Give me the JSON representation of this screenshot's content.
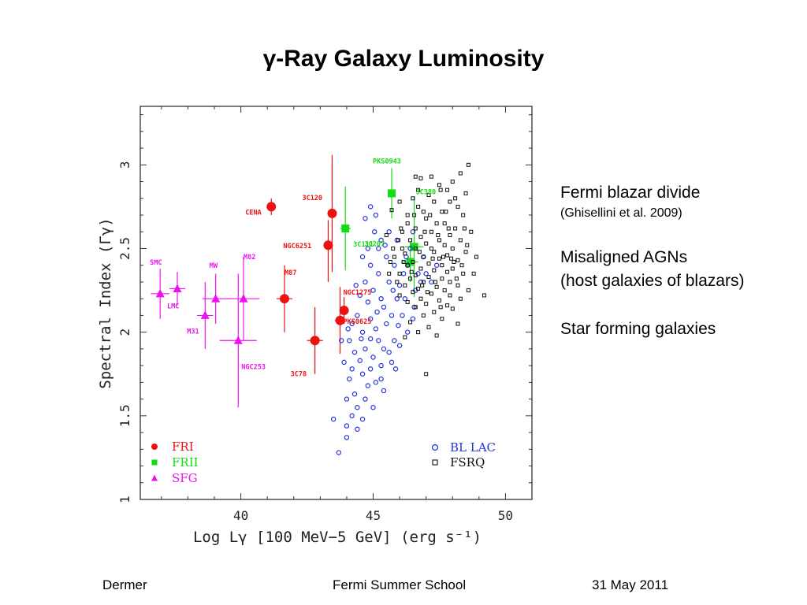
{
  "slide": {
    "title": "γ-Ray Galaxy Luminosity",
    "notes": [
      {
        "text": "Fermi blazar divide",
        "size": "big"
      },
      {
        "text": "(Ghisellini et al. 2009)",
        "size": "small"
      },
      {
        "text": "Misaligned AGNs",
        "size": "big"
      },
      {
        "text": "(host galaxies of blazars)",
        "size": "big"
      },
      {
        "text": "Star forming galaxies",
        "size": "big"
      }
    ],
    "footer": {
      "left": "Dermer",
      "center": "Fermi Summer School",
      "right": "31  May 2011"
    }
  },
  "colors": {
    "fri": "#ee1111",
    "frii": "#11dd11",
    "sfg": "#ee11ee",
    "bllac": "#2233dd",
    "fsrq": "#111111"
  },
  "chart_data": {
    "type": "scatter",
    "xlabel": "Log Lγ [100 MeV−5 GeV] (erg s⁻¹)",
    "ylabel": "Spectral Index (Γγ)",
    "xlim": [
      36.2,
      51.0
    ],
    "ylim": [
      1.0,
      3.35
    ],
    "xticks": [
      "40",
      "45",
      "50"
    ],
    "yticks": [
      "1",
      "1.5",
      "2",
      "2.5",
      "3"
    ],
    "legend_left": [
      {
        "label": "FRI",
        "series": "fri",
        "marker": "circle"
      },
      {
        "label": "FRII",
        "series": "frii",
        "marker": "square"
      },
      {
        "label": "SFG",
        "series": "sfg",
        "marker": "triangle"
      }
    ],
    "legend_right": [
      {
        "label": "BL LAC",
        "series": "bllac",
        "marker": "open-circle"
      },
      {
        "label": "FSRQ",
        "series": "fsrq",
        "marker": "open-square"
      }
    ],
    "series": [
      {
        "name": "FRI",
        "key": "fri",
        "marker": "circle",
        "points": [
          {
            "label": "CENA",
            "x": 41.15,
            "y": 2.75,
            "xerr": 0.0,
            "yerr": [
              0.05,
              0.05
            ]
          },
          {
            "label": "3C120",
            "x": 43.45,
            "y": 2.71,
            "xerr": 0.12,
            "yerr": [
              0.35,
              0.35
            ]
          },
          {
            "label": "NGC6251",
            "x": 43.3,
            "y": 2.52,
            "xerr": 0.15,
            "yerr": [
              0.22,
              0.15
            ]
          },
          {
            "label": "M87",
            "x": 41.65,
            "y": 2.2,
            "xerr": 0.3,
            "yerr": [
              0.2,
              0.2
            ]
          },
          {
            "label": "NGC1275",
            "x": 43.9,
            "y": 2.13,
            "xerr": 0.1,
            "yerr": [
              0.08,
              0.08
            ]
          },
          {
            "label": "PKS0625",
            "x": 43.75,
            "y": 2.07,
            "xerr": 0.2,
            "yerr": [
              0.2,
              0.2
            ]
          },
          {
            "label": "3C78",
            "x": 42.8,
            "y": 1.95,
            "xerr": 0.3,
            "yerr": [
              0.2,
              0.2
            ]
          }
        ]
      },
      {
        "name": "FRII",
        "key": "frii",
        "marker": "square",
        "points": [
          {
            "label": "PKS0943",
            "x": 45.7,
            "y": 2.83,
            "xerr": 0.12,
            "yerr": [
              0.15,
              0.15
            ]
          },
          {
            "label": "3C380",
            "x": 46.55,
            "y": 2.51,
            "xerr": 0.35,
            "yerr": [
              0.3,
              0.3
            ]
          },
          {
            "label": "3C111",
            "x": 43.95,
            "y": 2.62,
            "xerr": 0.2,
            "yerr": [
              0.25,
              0.25
            ]
          },
          {
            "label": "3C207",
            "x": 46.4,
            "y": 2.42,
            "xerr": 0.3,
            "yerr": [
              0.12,
              0.12
            ]
          }
        ]
      },
      {
        "name": "SFG",
        "key": "sfg",
        "marker": "triangle",
        "points": [
          {
            "label": "SMC",
            "x": 36.95,
            "y": 2.23,
            "xerr": 0.35,
            "yerr": [
              0.15,
              0.15
            ]
          },
          {
            "label": "LMC",
            "x": 37.6,
            "y": 2.26,
            "xerr": 0.3,
            "yerr": [
              0.1,
              0.1
            ]
          },
          {
            "label": "M31",
            "x": 38.65,
            "y": 2.1,
            "xerr": 0.3,
            "yerr": [
              0.2,
              0.2
            ]
          },
          {
            "label": "MW",
            "x": 39.05,
            "y": 2.2,
            "xerr": 0.5,
            "yerr": [
              0.15,
              0.15
            ]
          },
          {
            "label": "M82",
            "x": 40.1,
            "y": 2.2,
            "xerr": 0.6,
            "yerr": [
              0.25,
              0.25
            ]
          },
          {
            "label": "NGC253",
            "x": 39.9,
            "y": 1.95,
            "xerr": 0.7,
            "yerr": [
              0.4,
              0.4
            ]
          }
        ]
      },
      {
        "name": "BL LAC",
        "key": "bllac",
        "marker": "open-circle",
        "points": [
          [
            45.05,
            2.6
          ],
          [
            45.3,
            2.55
          ],
          [
            44.8,
            2.5
          ],
          [
            44.6,
            2.45
          ],
          [
            44.9,
            2.4
          ],
          [
            45.5,
            2.45
          ],
          [
            45.8,
            2.4
          ],
          [
            45.2,
            2.35
          ],
          [
            44.7,
            2.3
          ],
          [
            45.0,
            2.25
          ],
          [
            44.5,
            2.22
          ],
          [
            44.8,
            2.18
          ],
          [
            45.3,
            2.2
          ],
          [
            45.6,
            2.3
          ],
          [
            46.0,
            2.28
          ],
          [
            45.9,
            2.2
          ],
          [
            45.4,
            2.15
          ],
          [
            44.4,
            2.1
          ],
          [
            44.9,
            2.08
          ],
          [
            45.1,
            2.02
          ],
          [
            44.6,
            2.0
          ],
          [
            45.5,
            2.05
          ],
          [
            46.1,
            2.1
          ],
          [
            46.3,
            2.0
          ],
          [
            45.8,
            1.95
          ],
          [
            45.2,
            1.95
          ],
          [
            44.7,
            1.9
          ],
          [
            44.3,
            1.88
          ],
          [
            45.0,
            1.85
          ],
          [
            45.6,
            1.88
          ],
          [
            46.0,
            1.92
          ],
          [
            44.5,
            1.83
          ],
          [
            44.9,
            1.78
          ],
          [
            45.3,
            1.8
          ],
          [
            45.7,
            1.82
          ],
          [
            44.2,
            1.78
          ],
          [
            43.9,
            1.82
          ],
          [
            44.1,
            1.72
          ],
          [
            44.6,
            1.75
          ],
          [
            45.1,
            1.7
          ],
          [
            45.4,
            1.65
          ],
          [
            44.8,
            1.68
          ],
          [
            44.3,
            1.63
          ],
          [
            44.0,
            1.6
          ],
          [
            44.7,
            1.6
          ],
          [
            45.0,
            1.55
          ],
          [
            44.4,
            1.55
          ],
          [
            44.2,
            1.5
          ],
          [
            44.6,
            1.48
          ],
          [
            43.5,
            1.48
          ],
          [
            44.0,
            1.44
          ],
          [
            44.4,
            1.42
          ],
          [
            44.0,
            1.37
          ],
          [
            43.7,
            1.28
          ],
          [
            45.2,
            2.5
          ],
          [
            45.9,
            2.55
          ],
          [
            46.3,
            2.4
          ],
          [
            46.6,
            2.25
          ],
          [
            46.8,
            2.3
          ],
          [
            47.0,
            2.35
          ],
          [
            46.2,
            2.2
          ],
          [
            45.7,
            2.1
          ],
          [
            44.2,
            2.05
          ],
          [
            43.8,
            1.95
          ],
          [
            44.1,
            1.95
          ],
          [
            45.4,
            1.9
          ],
          [
            46.5,
            2.08
          ],
          [
            46.7,
            2.35
          ],
          [
            47.2,
            2.3
          ],
          [
            47.4,
            2.4
          ],
          [
            46.4,
            2.5
          ],
          [
            46.9,
            2.45
          ],
          [
            45.6,
            2.6
          ],
          [
            45.1,
            2.7
          ],
          [
            44.9,
            2.75
          ],
          [
            44.7,
            2.68
          ],
          [
            46.5,
            2.6
          ],
          [
            45.3,
            1.72
          ],
          [
            44.9,
            1.96
          ],
          [
            45.15,
            2.12
          ],
          [
            45.75,
            2.25
          ],
          [
            46.15,
            2.35
          ],
          [
            46.55,
            2.15
          ],
          [
            44.35,
            2.28
          ],
          [
            44.55,
            1.96
          ],
          [
            45.95,
            2.04
          ],
          [
            45.45,
            2.52
          ],
          [
            44.05,
            2.02
          ],
          [
            46.25,
            2.45
          ],
          [
            45.85,
            1.78
          ]
        ]
      },
      {
        "name": "FSRQ",
        "key": "fsrq",
        "marker": "open-square",
        "points": [
          [
            48.6,
            3.0
          ],
          [
            48.3,
            2.95
          ],
          [
            47.2,
            2.93
          ],
          [
            46.6,
            2.93
          ],
          [
            46.8,
            2.92
          ],
          [
            48.0,
            2.9
          ],
          [
            47.5,
            2.88
          ],
          [
            47.8,
            2.85
          ],
          [
            46.7,
            2.85
          ],
          [
            47.1,
            2.82
          ],
          [
            48.5,
            2.83
          ],
          [
            46.5,
            2.8
          ],
          [
            47.3,
            2.78
          ],
          [
            47.9,
            2.78
          ],
          [
            48.2,
            2.75
          ],
          [
            46.9,
            2.72
          ],
          [
            47.6,
            2.72
          ],
          [
            46.3,
            2.7
          ],
          [
            48.4,
            2.7
          ],
          [
            47.0,
            2.68
          ],
          [
            47.4,
            2.65
          ],
          [
            47.7,
            2.65
          ],
          [
            48.1,
            2.62
          ],
          [
            46.6,
            2.62
          ],
          [
            46.1,
            2.6
          ],
          [
            47.2,
            2.6
          ],
          [
            48.7,
            2.6
          ],
          [
            47.9,
            2.58
          ],
          [
            46.8,
            2.57
          ],
          [
            47.5,
            2.55
          ],
          [
            48.3,
            2.55
          ],
          [
            46.4,
            2.55
          ],
          [
            47.0,
            2.53
          ],
          [
            47.7,
            2.52
          ],
          [
            48.0,
            2.5
          ],
          [
            46.6,
            2.5
          ],
          [
            47.3,
            2.48
          ],
          [
            48.5,
            2.48
          ],
          [
            46.2,
            2.47
          ],
          [
            47.8,
            2.46
          ],
          [
            46.9,
            2.45
          ],
          [
            47.5,
            2.44
          ],
          [
            48.2,
            2.43
          ],
          [
            46.5,
            2.42
          ],
          [
            47.1,
            2.41
          ],
          [
            47.6,
            2.4
          ],
          [
            46.3,
            2.4
          ],
          [
            48.0,
            2.38
          ],
          [
            46.8,
            2.38
          ],
          [
            47.3,
            2.37
          ],
          [
            47.8,
            2.36
          ],
          [
            46.0,
            2.35
          ],
          [
            48.4,
            2.35
          ],
          [
            46.6,
            2.34
          ],
          [
            47.1,
            2.33
          ],
          [
            47.6,
            2.32
          ],
          [
            46.4,
            2.32
          ],
          [
            47.9,
            2.3
          ],
          [
            46.9,
            2.3
          ],
          [
            48.2,
            2.28
          ],
          [
            46.2,
            2.28
          ],
          [
            47.4,
            2.27
          ],
          [
            46.7,
            2.26
          ],
          [
            47.7,
            2.25
          ],
          [
            48.6,
            2.25
          ],
          [
            46.5,
            2.24
          ],
          [
            47.2,
            2.23
          ],
          [
            47.9,
            2.22
          ],
          [
            46.0,
            2.22
          ],
          [
            46.8,
            2.2
          ],
          [
            48.3,
            2.2
          ],
          [
            47.5,
            2.19
          ],
          [
            46.3,
            2.18
          ],
          [
            47.0,
            2.17
          ],
          [
            47.8,
            2.16
          ],
          [
            46.6,
            2.15
          ],
          [
            48.0,
            2.14
          ],
          [
            47.3,
            2.12
          ],
          [
            46.9,
            2.1
          ],
          [
            47.6,
            2.08
          ],
          [
            46.4,
            2.06
          ],
          [
            48.2,
            2.05
          ],
          [
            47.1,
            2.03
          ],
          [
            46.7,
            2.0
          ],
          [
            47.4,
            1.98
          ],
          [
            46.2,
            1.97
          ],
          [
            45.9,
            2.3
          ],
          [
            45.6,
            2.35
          ],
          [
            45.8,
            2.45
          ],
          [
            46.1,
            2.5
          ],
          [
            45.5,
            2.58
          ],
          [
            46.3,
            2.65
          ],
          [
            45.7,
            2.73
          ],
          [
            46.0,
            2.78
          ],
          [
            48.9,
            2.45
          ],
          [
            49.2,
            2.22
          ],
          [
            48.8,
            2.35
          ],
          [
            47.0,
            1.75
          ],
          [
            47.2,
            2.5
          ],
          [
            47.45,
            2.58
          ],
          [
            47.65,
            2.45
          ],
          [
            47.85,
            2.62
          ],
          [
            48.05,
            2.42
          ],
          [
            47.35,
            2.3
          ],
          [
            47.55,
            2.15
          ],
          [
            46.95,
            2.6
          ],
          [
            46.75,
            2.48
          ],
          [
            48.15,
            2.32
          ],
          [
            46.55,
            2.7
          ],
          [
            47.15,
            2.7
          ],
          [
            48.45,
            2.62
          ],
          [
            47.75,
            2.72
          ],
          [
            46.85,
            2.28
          ],
          [
            47.25,
            2.44
          ],
          [
            48.35,
            2.4
          ],
          [
            46.45,
            2.36
          ],
          [
            47.05,
            2.24
          ],
          [
            47.95,
            2.44
          ],
          [
            46.15,
            2.42
          ],
          [
            48.55,
            2.52
          ],
          [
            46.05,
            2.62
          ],
          [
            47.55,
            2.85
          ],
          [
            48.1,
            2.8
          ],
          [
            46.7,
            2.75
          ],
          [
            45.95,
            2.55
          ],
          [
            45.75,
            2.5
          ],
          [
            45.65,
            2.42
          ]
        ]
      }
    ]
  }
}
